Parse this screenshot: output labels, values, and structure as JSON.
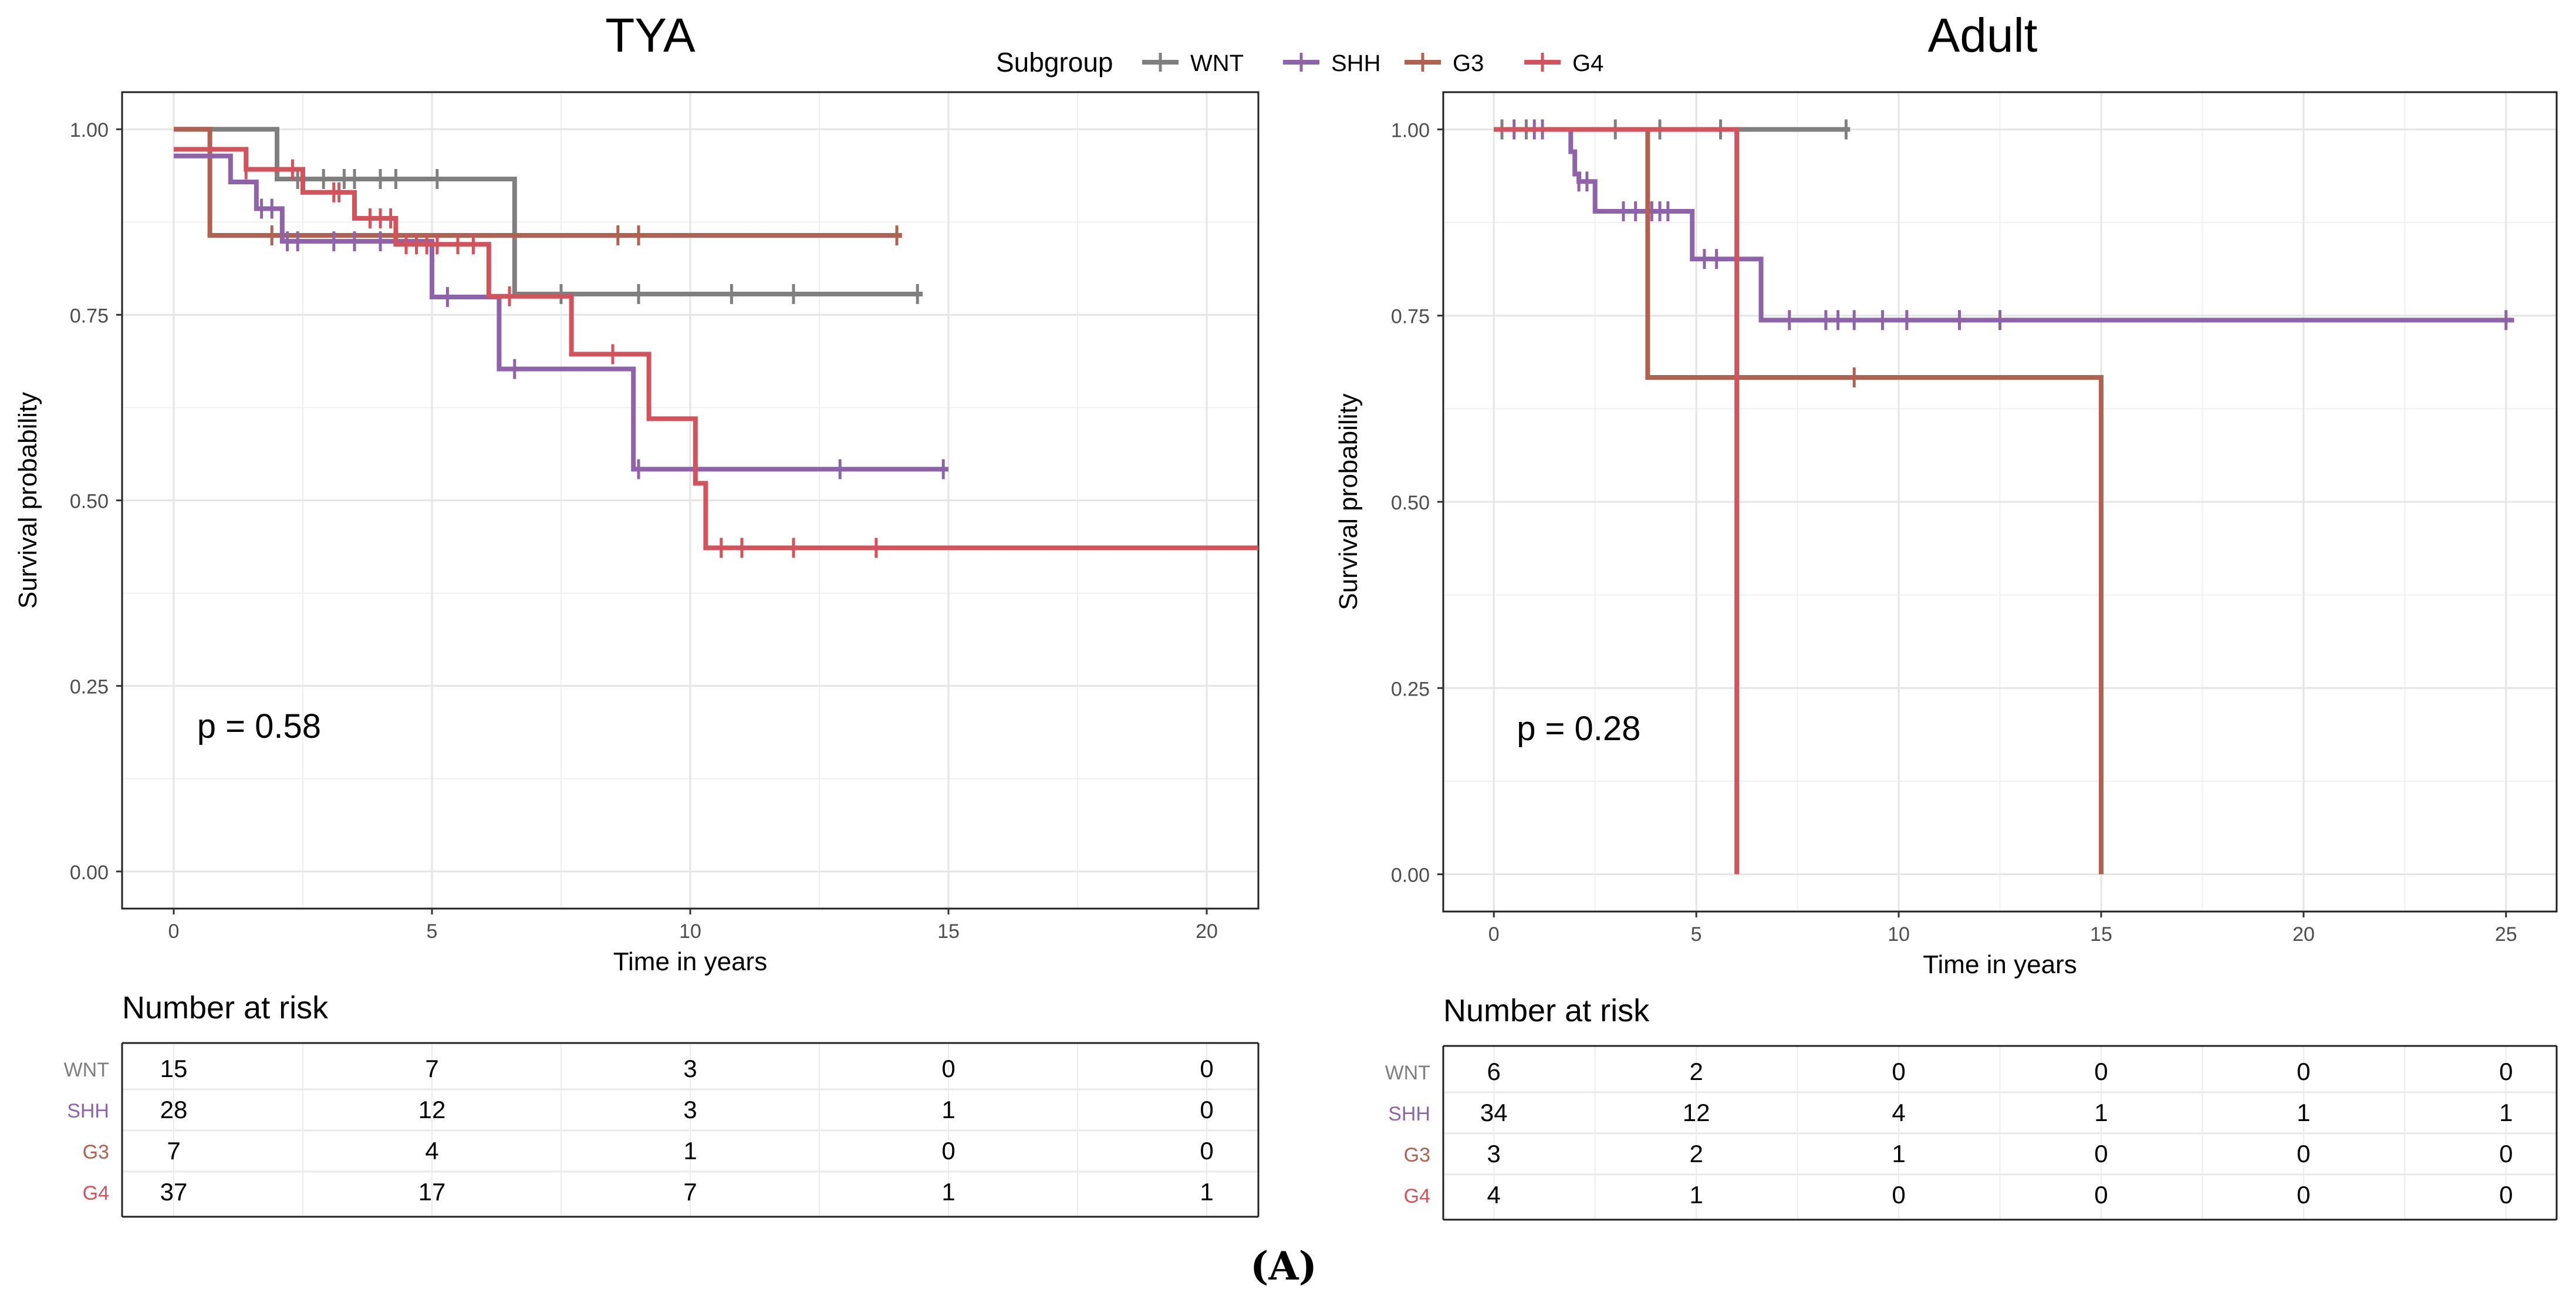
{
  "figure_label": "(A)",
  "legend": {
    "title": "Subgroup",
    "entries": [
      {
        "key": "WNT",
        "label": "WNT",
        "color": "#7f7f7f"
      },
      {
        "key": "SHH",
        "label": "SHH",
        "color": "#8e63a9"
      },
      {
        "key": "G3",
        "label": "G3",
        "color": "#b0614f"
      },
      {
        "key": "G4",
        "label": "G4",
        "color": "#d2535b"
      }
    ]
  },
  "chart_data": [
    {
      "type": "line",
      "subtype": "kaplan-meier",
      "title": "TYA",
      "xlabel": "Time in years",
      "ylabel": "Survival probability",
      "xlim": [
        -1,
        21
      ],
      "ylim": [
        -0.05,
        1.05
      ],
      "xticks": [
        0,
        5,
        10,
        15,
        20
      ],
      "xtick_labels": [
        "0",
        "5",
        "10",
        "15",
        "20"
      ],
      "yticks": [
        0,
        0.25,
        0.5,
        0.75,
        1
      ],
      "ytick_labels": [
        "0.00",
        "0.25",
        "0.50",
        "0.75",
        "1.00"
      ],
      "annotation": "p = 0.58",
      "series": [
        {
          "name": "WNT",
          "key": "WNT",
          "steps": [
            [
              0,
              1
            ],
            [
              2,
              0.933
            ],
            [
              6.6,
              0.778
            ]
          ],
          "end": 14.5,
          "censors": [
            2.4,
            2.9,
            3.3,
            3.5,
            4.0,
            4.3,
            5.1,
            7.5,
            9.0,
            10.8,
            12.0,
            14.4
          ]
        },
        {
          "name": "G3",
          "key": "G3",
          "steps": [
            [
              0,
              1
            ],
            [
              0.7,
              0.857
            ]
          ],
          "end": 14.1,
          "censors": [
            1.9,
            8.6,
            9.0,
            14.0
          ]
        },
        {
          "name": "SHH",
          "key": "SHH",
          "steps": [
            [
              0,
              0.964
            ],
            [
              1.1,
              0.929
            ],
            [
              1.6,
              0.893
            ],
            [
              2.1,
              0.849
            ],
            [
              5.0,
              0.774
            ],
            [
              6.3,
              0.677
            ],
            [
              8.9,
              0.542
            ]
          ],
          "end": 15.0,
          "censors": [
            1.7,
            1.9,
            2.2,
            2.4,
            3.1,
            3.5,
            4.0,
            5.3,
            6.6,
            9.0,
            12.9,
            14.9
          ]
        },
        {
          "name": "G4",
          "key": "G4",
          "steps": [
            [
              0,
              0.973
            ],
            [
              1.4,
              0.946
            ],
            [
              2.5,
              0.915
            ],
            [
              3.5,
              0.88
            ],
            [
              4.3,
              0.845
            ],
            [
              6.1,
              0.775
            ],
            [
              7.7,
              0.697
            ],
            [
              9.2,
              0.61
            ],
            [
              10.1,
              0.523
            ],
            [
              10.3,
              0.436
            ]
          ],
          "end": 21,
          "censors": [
            1.4,
            2.3,
            3.1,
            3.2,
            3.8,
            4.0,
            4.2,
            4.5,
            4.7,
            4.9,
            5.1,
            5.5,
            5.8,
            6.5,
            8.5,
            10.6,
            11.0,
            12.0,
            13.6
          ]
        }
      ]
    },
    {
      "type": "line",
      "subtype": "kaplan-meier",
      "title": "Adult",
      "xlabel": "Time in years",
      "ylabel": "Survival probability",
      "xlim": [
        -1.25,
        26.25
      ],
      "ylim": [
        -0.05,
        1.05
      ],
      "xticks": [
        0,
        5,
        10,
        15,
        20,
        25
      ],
      "xtick_labels": [
        "0",
        "5",
        "10",
        "15",
        "20",
        "25"
      ],
      "yticks": [
        0,
        0.25,
        0.5,
        0.75,
        1
      ],
      "ytick_labels": [
        "0.00",
        "0.25",
        "0.50",
        "0.75",
        "1.00"
      ],
      "annotation": "p = 0.28",
      "series": [
        {
          "name": "WNT",
          "key": "WNT",
          "steps": [
            [
              0,
              1
            ]
          ],
          "end": 8.8,
          "censors": [
            0.2,
            0.8,
            3.0,
            4.1,
            5.6,
            8.7
          ]
        },
        {
          "name": "SHH",
          "key": "SHH",
          "steps": [
            [
              0,
              1
            ],
            [
              1.9,
              0.97
            ],
            [
              2.0,
              0.94
            ],
            [
              2.1,
              0.93
            ],
            [
              2.5,
              0.89
            ],
            [
              4.9,
              0.826
            ],
            [
              6.6,
              0.744
            ]
          ],
          "end": 25.2,
          "censors": [
            0.5,
            1.0,
            1.2,
            2.1,
            2.3,
            3.2,
            3.5,
            3.9,
            4.1,
            4.3,
            5.2,
            5.5,
            7.3,
            8.2,
            8.5,
            8.9,
            9.6,
            10.2,
            11.5,
            12.5,
            25.0
          ]
        },
        {
          "name": "G3",
          "key": "G3",
          "steps": [
            [
              0,
              1
            ],
            [
              3.8,
              0.667
            ],
            [
              15,
              0
            ]
          ],
          "end": 15,
          "censors": [
            8.9
          ]
        },
        {
          "name": "G4",
          "key": "G4",
          "steps": [
            [
              0,
              1
            ],
            [
              6.0,
              0
            ]
          ],
          "end": 6.0,
          "censors": []
        }
      ]
    }
  ],
  "risk_tables": [
    {
      "title": "Number at risk",
      "groups": [
        {
          "key": "WNT",
          "label": "WNT",
          "values": [
            "15",
            "7",
            "3",
            "0",
            "0"
          ]
        },
        {
          "key": "SHH",
          "label": "SHH",
          "values": [
            "28",
            "12",
            "3",
            "1",
            "0"
          ]
        },
        {
          "key": "G3",
          "label": "G3",
          "values": [
            "7",
            "4",
            "1",
            "0",
            "0"
          ]
        },
        {
          "key": "G4",
          "label": "G4",
          "values": [
            "37",
            "17",
            "7",
            "1",
            "1"
          ]
        }
      ]
    },
    {
      "title": "Number at risk",
      "groups": [
        {
          "key": "WNT",
          "label": "WNT",
          "values": [
            "6",
            "2",
            "0",
            "0",
            "0",
            "0"
          ]
        },
        {
          "key": "SHH",
          "label": "SHH",
          "values": [
            "34",
            "12",
            "4",
            "1",
            "1",
            "1"
          ]
        },
        {
          "key": "G3",
          "label": "G3",
          "values": [
            "3",
            "2",
            "1",
            "0",
            "0",
            "0"
          ]
        },
        {
          "key": "G4",
          "label": "G4",
          "values": [
            "4",
            "1",
            "0",
            "0",
            "0",
            "0"
          ]
        }
      ]
    }
  ]
}
